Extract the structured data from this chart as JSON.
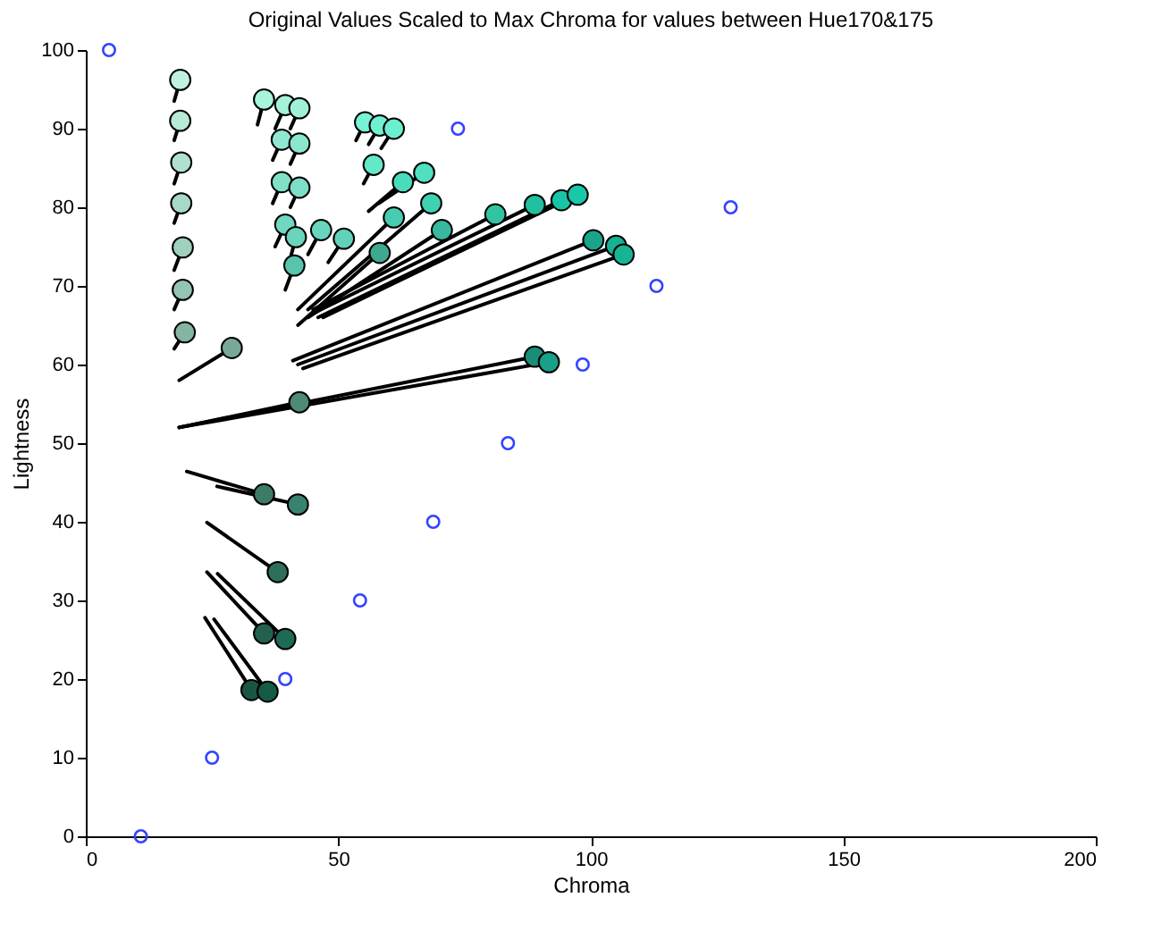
{
  "chart_data": {
    "type": "scatter",
    "title": "Original Values Scaled to Max Chroma for values between Hue170&175",
    "xlabel": "Chroma",
    "ylabel": "Lightness",
    "xlim": [
      0,
      200
    ],
    "xticks": [
      0,
      50,
      100,
      150,
      200
    ],
    "ylim": [
      0,
      100
    ],
    "yticks": [
      0,
      10,
      20,
      30,
      40,
      50,
      60,
      70,
      80,
      90,
      100
    ],
    "grid": false,
    "series": [
      {
        "type": "scatter",
        "marker": "circle",
        "color": "#3344ff",
        "x": [
          4.6,
          10.9,
          25,
          39.5,
          54.3,
          68.8,
          83.6,
          98.4,
          113,
          127.7,
          73.7
        ],
        "values": [
          100,
          0,
          10,
          20,
          30,
          40,
          50,
          60,
          70,
          80,
          90
        ]
      },
      {
        "type": "line",
        "color": "#000000",
        "x": [
          17.5,
          18.7
        ],
        "values": [
          93.5,
          96.2
        ]
      },
      {
        "type": "line",
        "color": "#000000",
        "x": [
          17.5,
          18.7
        ],
        "values": [
          88.5,
          91.0
        ]
      },
      {
        "type": "line",
        "color": "#000000",
        "x": [
          17.5,
          18.9
        ],
        "values": [
          83,
          85.7
        ]
      },
      {
        "type": "line",
        "color": "#000000",
        "x": [
          17.5,
          18.9
        ],
        "values": [
          78,
          80.5
        ]
      },
      {
        "type": "line",
        "color": "#000000",
        "x": [
          17.5,
          19.2
        ],
        "values": [
          72,
          74.9
        ]
      },
      {
        "type": "line",
        "color": "#000000",
        "x": [
          17.5,
          19.2
        ],
        "values": [
          67,
          69.5
        ]
      },
      {
        "type": "line",
        "color": "#000000",
        "x": [
          17.5,
          19.6
        ],
        "values": [
          62,
          64.1
        ]
      },
      {
        "type": "line",
        "color": "#000000",
        "x": [
          18.5,
          28.9
        ],
        "values": [
          58,
          62.1
        ]
      },
      {
        "type": "line",
        "color": "#000000",
        "x": [
          34,
          35.3
        ],
        "values": [
          90.5,
          93.7
        ]
      },
      {
        "type": "line",
        "color": "#000000",
        "x": [
          37.5,
          39.5
        ],
        "values": [
          90,
          93
        ]
      },
      {
        "type": "line",
        "color": "#000000",
        "x": [
          40.5,
          42.3
        ],
        "values": [
          90,
          92.6
        ]
      },
      {
        "type": "line",
        "color": "#000000",
        "x": [
          37,
          38.8
        ],
        "values": [
          86,
          88.6
        ]
      },
      {
        "type": "line",
        "color": "#000000",
        "x": [
          40.5,
          42.3
        ],
        "values": [
          85.5,
          88.1
        ]
      },
      {
        "type": "line",
        "color": "#000000",
        "x": [
          37,
          38.8
        ],
        "values": [
          80.5,
          83.2
        ]
      },
      {
        "type": "line",
        "color": "#000000",
        "x": [
          40.5,
          42.3
        ],
        "values": [
          80,
          82.5
        ]
      },
      {
        "type": "line",
        "color": "#000000",
        "x": [
          37.5,
          39.5
        ],
        "values": [
          75,
          77.8
        ]
      },
      {
        "type": "line",
        "color": "#000000",
        "x": [
          40.5,
          41.6
        ],
        "values": [
          73.5,
          76.2
        ]
      },
      {
        "type": "line",
        "color": "#000000",
        "x": [
          44,
          46.6
        ],
        "values": [
          74,
          77.1
        ]
      },
      {
        "type": "line",
        "color": "#000000",
        "x": [
          48,
          51.1
        ],
        "values": [
          73,
          76
        ]
      },
      {
        "type": "line",
        "color": "#000000",
        "x": [
          39.5,
          41.3
        ],
        "values": [
          69.5,
          72.6
        ]
      },
      {
        "type": "line",
        "color": "#000000",
        "x": [
          18.5,
          42.3
        ],
        "values": [
          52,
          55.2
        ]
      },
      {
        "type": "line",
        "color": "#000000",
        "x": [
          53.5,
          55.3
        ],
        "values": [
          88.5,
          90.8
        ]
      },
      {
        "type": "line",
        "color": "#000000",
        "x": [
          56,
          58.2
        ],
        "values": [
          88,
          90.4
        ]
      },
      {
        "type": "line",
        "color": "#000000",
        "x": [
          58.5,
          61
        ],
        "values": [
          87.5,
          90
        ]
      },
      {
        "type": "line",
        "color": "#000000",
        "x": [
          55,
          57
        ],
        "values": [
          83,
          85.4
        ]
      },
      {
        "type": "line",
        "color": "#000000",
        "x": [
          56,
          62.8
        ],
        "values": [
          79.5,
          83.2
        ]
      },
      {
        "type": "line",
        "color": "#000000",
        "x": [
          58,
          67
        ],
        "values": [
          80.5,
          84.4
        ]
      },
      {
        "type": "line",
        "color": "#000000",
        "x": [
          42,
          61
        ],
        "values": [
          67,
          78.7
        ]
      },
      {
        "type": "line",
        "color": "#000000",
        "x": [
          44,
          68.4
        ],
        "values": [
          67,
          80.5
        ]
      },
      {
        "type": "line",
        "color": "#000000",
        "x": [
          44,
          70.5
        ],
        "values": [
          66,
          77.1
        ]
      },
      {
        "type": "line",
        "color": "#000000",
        "x": [
          42,
          58.2
        ],
        "values": [
          65,
          74.2
        ]
      },
      {
        "type": "line",
        "color": "#000000",
        "x": [
          45,
          81.1
        ],
        "values": [
          67,
          79.1
        ]
      },
      {
        "type": "line",
        "color": "#000000",
        "x": [
          45,
          88.9
        ],
        "values": [
          66.5,
          80.3
        ]
      },
      {
        "type": "line",
        "color": "#000000",
        "x": [
          46,
          94.2
        ],
        "values": [
          66,
          80.9
        ]
      },
      {
        "type": "line",
        "color": "#000000",
        "x": [
          47,
          97.4
        ],
        "values": [
          66,
          81.6
        ]
      },
      {
        "type": "line",
        "color": "#000000",
        "x": [
          41,
          100.5
        ],
        "values": [
          60.5,
          75.8
        ]
      },
      {
        "type": "line",
        "color": "#000000",
        "x": [
          42,
          105
        ],
        "values": [
          60,
          75.1
        ]
      },
      {
        "type": "line",
        "color": "#000000",
        "x": [
          43,
          106.5
        ],
        "values": [
          59.5,
          74
        ]
      },
      {
        "type": "line",
        "color": "#000000",
        "x": [
          18.5,
          88.9
        ],
        "values": [
          52,
          61
        ]
      },
      {
        "type": "line",
        "color": "#000000",
        "x": [
          18.5,
          91.7
        ],
        "values": [
          52,
          60.3
        ]
      },
      {
        "type": "line",
        "color": "#000000",
        "x": [
          20,
          35.3
        ],
        "values": [
          46.4,
          43.5
        ]
      },
      {
        "type": "line",
        "color": "#000000",
        "x": [
          26,
          42
        ],
        "values": [
          44.5,
          42.2
        ]
      },
      {
        "type": "line",
        "color": "#000000",
        "x": [
          24,
          38
        ],
        "values": [
          39.9,
          33.6
        ]
      },
      {
        "type": "line",
        "color": "#000000",
        "x": [
          24,
          35.3
        ],
        "values": [
          33.6,
          25.8
        ]
      },
      {
        "type": "line",
        "color": "#000000",
        "x": [
          26.1,
          39.5
        ],
        "values": [
          33.4,
          25.1
        ]
      },
      {
        "type": "line",
        "color": "#000000",
        "x": [
          23.6,
          32.8
        ],
        "values": [
          27.8,
          18.6
        ]
      },
      {
        "type": "line",
        "color": "#000000",
        "x": [
          25.4,
          36
        ],
        "values": [
          27.6,
          18.4
        ]
      },
      {
        "type": "scatter",
        "marker": "circle",
        "x": [
          18.7,
          18.7,
          18.9,
          18.9,
          19.2,
          19.2,
          19.6,
          28.9,
          35.3,
          39.5,
          42.3,
          38.8,
          42.3,
          38.8,
          42.3,
          39.5,
          41.6,
          46.6,
          51.1,
          41.3,
          42.3,
          55.3,
          58.2,
          61,
          57,
          62.8,
          67,
          61,
          68.4,
          70.5,
          58.2,
          81.1,
          88.9,
          94.2,
          97.4,
          100.5,
          105,
          106.5,
          88.9,
          91.7,
          35.3,
          42,
          38,
          35.3,
          39.5,
          32.8,
          36
        ],
        "values": [
          96.2,
          91.0,
          85.7,
          80.5,
          74.9,
          69.5,
          64.1,
          62.1,
          93.7,
          93,
          92.6,
          88.6,
          88.1,
          83.2,
          82.5,
          77.8,
          76.2,
          77.1,
          76,
          72.6,
          55.2,
          90.8,
          90.4,
          90,
          85.4,
          83.2,
          84.4,
          78.7,
          80.5,
          77.1,
          74.2,
          79.1,
          80.3,
          80.9,
          81.6,
          75.8,
          75.1,
          74,
          61,
          60.3,
          43.5,
          42.2,
          33.6,
          25.8,
          25.1,
          18.6,
          18.4
        ],
        "colors": [
          "#c0f0de",
          "#b8e8d6",
          "#b0e0ce",
          "#a8d8c6",
          "#a0d0be",
          "#94c4b2",
          "#84b4a2",
          "#78a898",
          "#a8f4dc",
          "#a4f2da",
          "#a0f0d8",
          "#90e8d0",
          "#8ce6ce",
          "#80e0c8",
          "#7cdec6",
          "#70d8c0",
          "#6cd4bc",
          "#68d6be",
          "#60d2b8",
          "#58c4ac",
          "#4e8a78",
          "#78f2d4",
          "#70f0d2",
          "#6ceed0",
          "#64e8c8",
          "#48dcbc",
          "#50e0c0",
          "#48ccb0",
          "#40d0b2",
          "#38b89c",
          "#40a890",
          "#30c4a4",
          "#20c0a0",
          "#18c4a4",
          "#18c8a8",
          "#1aa48a",
          "#18b092",
          "#18b496",
          "#188e78",
          "#18a088",
          "#3e7a68",
          "#3a8270",
          "#2e6e5c",
          "#24604e",
          "#1e6a56",
          "#1a5444",
          "#165a48"
        ]
      }
    ]
  }
}
